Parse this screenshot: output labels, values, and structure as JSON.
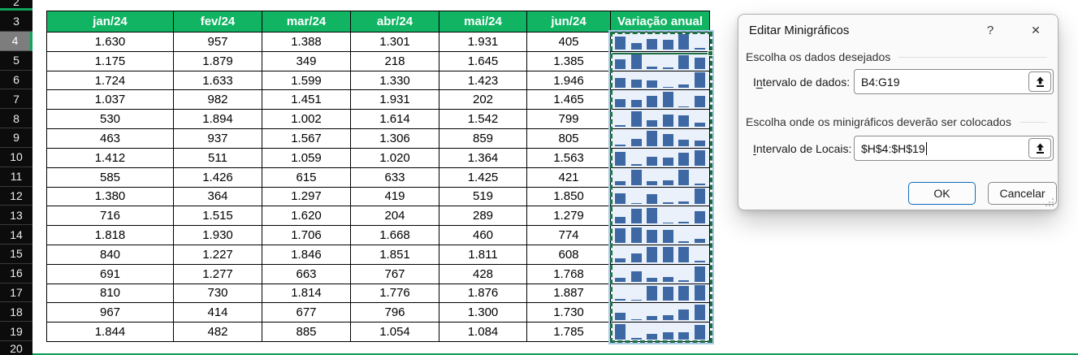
{
  "sheet": {
    "row_numbers": [
      "2",
      "3",
      "4",
      "5",
      "6",
      "7",
      "8",
      "9",
      "10",
      "11",
      "12",
      "13",
      "14",
      "15",
      "16",
      "17",
      "18",
      "19",
      "20"
    ],
    "active_row_number": "4",
    "month_headers": [
      "jan/24",
      "fev/24",
      "mar/24",
      "abr/24",
      "mai/24",
      "jun/24"
    ],
    "sparkline_header": "Variação anual",
    "data_rows": [
      [
        "1.630",
        "957",
        "1.388",
        "1.301",
        "1.931",
        "405"
      ],
      [
        "1.175",
        "1.879",
        "349",
        "218",
        "1.645",
        "1.385"
      ],
      [
        "1.724",
        "1.633",
        "1.599",
        "1.330",
        "1.423",
        "1.946"
      ],
      [
        "1.037",
        "982",
        "1.451",
        "1.931",
        "202",
        "1.465"
      ],
      [
        "530",
        "1.894",
        "1.002",
        "1.614",
        "1.542",
        "799"
      ],
      [
        "463",
        "937",
        "1.567",
        "1.306",
        "859",
        "805"
      ],
      [
        "1.412",
        "511",
        "1.059",
        "1.020",
        "1.364",
        "1.563"
      ],
      [
        "585",
        "1.426",
        "615",
        "633",
        "1.425",
        "421"
      ],
      [
        "1.380",
        "364",
        "1.297",
        "419",
        "519",
        "1.850"
      ],
      [
        "716",
        "1.515",
        "1.620",
        "204",
        "289",
        "1.279"
      ],
      [
        "1.818",
        "1.930",
        "1.706",
        "1.668",
        "460",
        "774"
      ],
      [
        "840",
        "1.227",
        "1.846",
        "1.851",
        "1.811",
        "608"
      ],
      [
        "691",
        "1.277",
        "663",
        "767",
        "428",
        "1.768"
      ],
      [
        "810",
        "730",
        "1.814",
        "1.776",
        "1.876",
        "1.887"
      ],
      [
        "967",
        "414",
        "677",
        "796",
        "1.300",
        "1.730"
      ],
      [
        "1.844",
        "482",
        "885",
        "1.054",
        "1.084",
        "1.785"
      ]
    ]
  },
  "sparklines": {
    "style": "column",
    "bar_color": "#3d68a4",
    "cell_background": "#eaf1fa",
    "selection_dash_color": "#1d7044"
  },
  "colors": {
    "header_green": "#10b463",
    "accent_green": "#0fa35c",
    "bottom_strip_green": "#0f9d57",
    "ok_button_border": "#0f6cbd"
  },
  "dialog": {
    "title": "Editar Minigráficos",
    "help": "?",
    "close": "✕",
    "section_data": {
      "group_label": "Escolha os dados desejados",
      "field": {
        "accel_pre": "I",
        "accel": "n",
        "accel_post": "tervalo de dados:",
        "value": "B4:G19"
      }
    },
    "section_location": {
      "group_label": "Escolha onde os minigráficos deverão ser colocados",
      "field": {
        "accel_pre": "",
        "accel": "I",
        "accel_post": "ntervalo de Locais:",
        "value": "$H$4:$H$19"
      }
    },
    "buttons": {
      "ok": "OK",
      "cancel": "Cancelar"
    }
  }
}
